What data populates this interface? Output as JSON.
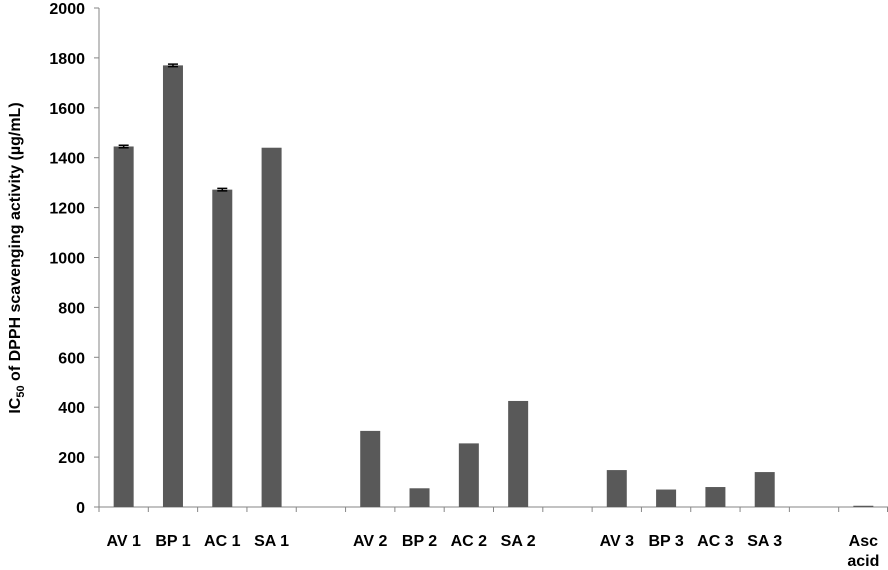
{
  "chart_data": {
    "type": "bar",
    "y_label": {
      "main": "IC",
      "sub": "50",
      "rest": " of DPPH scavenging activity (µg/mL)"
    },
    "categories": [
      "AV 1",
      "BP 1",
      "AC 1",
      "SA 1",
      null,
      "AV 2",
      "BP 2",
      "AC 2",
      "SA 2",
      null,
      "AV 3",
      "BP 3",
      "AC 3",
      "SA 3",
      null,
      "Asc\nacid"
    ],
    "values": [
      1445,
      1770,
      1272,
      1440,
      null,
      305,
      75,
      255,
      425,
      null,
      148,
      70,
      80,
      140,
      null,
      5
    ],
    "errors": [
      5,
      5,
      5,
      null,
      null,
      null,
      null,
      null,
      null,
      null,
      null,
      null,
      null,
      null,
      null,
      null
    ],
    "color": "#595959",
    "ylim": [
      0,
      2000
    ],
    "yticks": [
      0,
      200,
      400,
      600,
      800,
      1000,
      1200,
      1400,
      1600,
      1800,
      2000
    ]
  }
}
